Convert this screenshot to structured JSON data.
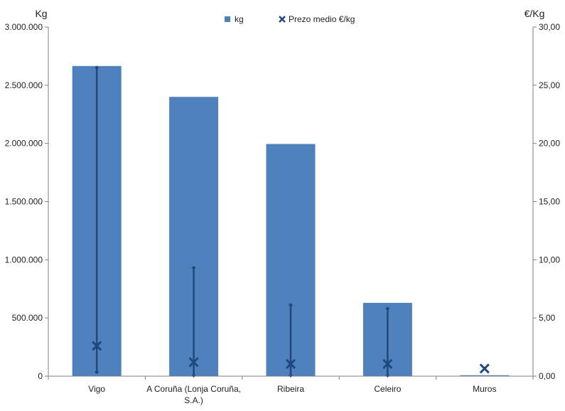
{
  "chart_data": {
    "type": "bar",
    "categories": [
      "Vigo",
      "A Coruña (Lonja Coruña, S.A.)",
      "Ribeira",
      "Celeiro",
      "Muros"
    ],
    "category_lines": [
      [
        "Vigo"
      ],
      [
        "A Coruña (Lonja Coruña,",
        "S.A.)"
      ],
      [
        "Ribeira"
      ],
      [
        "Celeiro"
      ],
      [
        "Muros"
      ]
    ],
    "left_axis": {
      "label": "Kg",
      "ylim": [
        0,
        3000000
      ],
      "ticks": [
        0,
        500000,
        1000000,
        1500000,
        2000000,
        2500000,
        3000000
      ],
      "tick_labels": [
        "0",
        "500.000",
        "1.000.000",
        "1.500.000",
        "2.000.000",
        "2.500.000",
        "3.000.000"
      ]
    },
    "right_axis": {
      "label": "€/Kg",
      "ylim": [
        0,
        30
      ],
      "ticks": [
        0,
        5,
        10,
        15,
        20,
        25,
        30
      ],
      "tick_labels": [
        "0,00",
        "5,00",
        "10,00",
        "15,00",
        "20,00",
        "25,00",
        "30,00"
      ]
    },
    "series": [
      {
        "name": "kg",
        "axis": "left",
        "kind": "bar",
        "color": "#4f81bd",
        "values": [
          2665000,
          2400000,
          1995000,
          630000,
          8000
        ]
      },
      {
        "name": "Prezo medio €/kg",
        "axis": "right",
        "kind": "marker-x",
        "color": "#1f497d",
        "values": [
          2.6,
          1.2,
          1.05,
          1.05,
          0.65
        ],
        "high": [
          26.5,
          9.3,
          6.1,
          5.8,
          0.65
        ],
        "low": [
          0.35,
          0.05,
          0.05,
          0.05,
          0.65
        ]
      }
    ],
    "grid": false,
    "legend_position": "top"
  }
}
